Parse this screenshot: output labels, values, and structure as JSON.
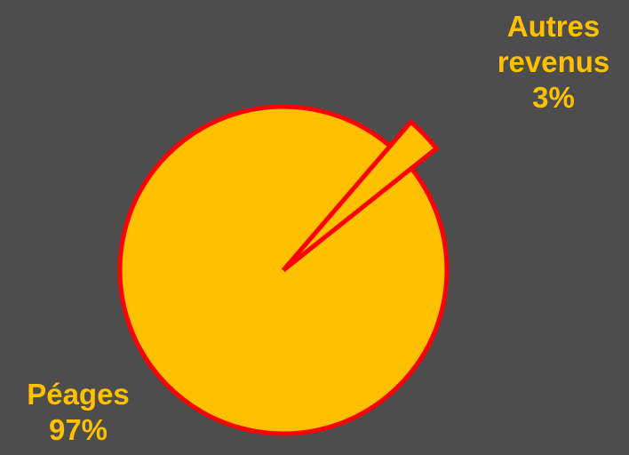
{
  "chart_data": {
    "type": "pie",
    "slices": [
      {
        "label_lines": [
          "Autres",
          "revenus"
        ],
        "value": 3,
        "value_text": "3%",
        "exploded": true
      },
      {
        "label_lines": [
          "Péages"
        ],
        "value": 97,
        "value_text": "97%",
        "exploded": false
      }
    ],
    "colors": {
      "fill": "#ffc000",
      "stroke": "#ff0000",
      "label": "#ffc000",
      "background": "#4d4d4d"
    },
    "start_angle_deg": 38.5
  }
}
